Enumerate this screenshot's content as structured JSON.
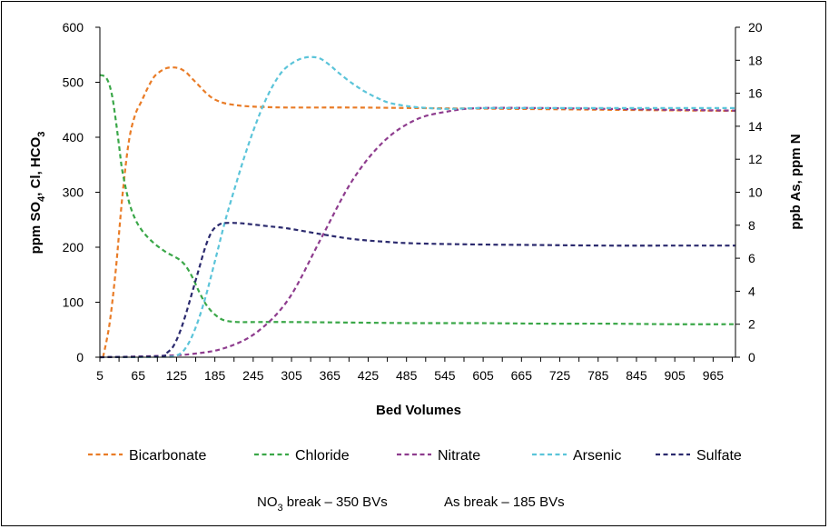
{
  "chart_data": {
    "type": "line",
    "xlabel": "Bed Volumes",
    "ylabel_left": {
      "parts": [
        "ppm SO",
        "4",
        ", Cl, HCO",
        "3"
      ]
    },
    "ylabel_right": "ppb As, ppm N",
    "xlim": [
      5,
      1000
    ],
    "x_ticks": [
      5,
      65,
      125,
      185,
      245,
      305,
      365,
      425,
      485,
      545,
      605,
      665,
      725,
      785,
      845,
      905,
      965
    ],
    "ylim_left": [
      0,
      600
    ],
    "y_ticks_left": [
      0,
      100,
      200,
      300,
      400,
      500,
      600
    ],
    "ylim_right": [
      0,
      20
    ],
    "y_ticks_right": [
      0,
      2,
      4,
      6,
      8,
      10,
      12,
      14,
      16,
      18,
      20
    ],
    "grid": false,
    "legend_position": "bottom",
    "series": [
      {
        "name": "Bicarbonate",
        "axis": "left",
        "color": "#e97c27",
        "x": [
          10,
          20,
          30,
          40,
          50,
          60,
          70,
          80,
          90,
          100,
          110,
          120,
          130,
          140,
          150,
          160,
          170,
          180,
          190,
          200,
          220,
          240,
          260,
          300,
          400,
          500,
          600,
          700,
          800,
          900,
          1000
        ],
        "y": [
          0,
          60,
          160,
          290,
          390,
          440,
          465,
          490,
          510,
          520,
          526,
          527,
          525,
          518,
          506,
          494,
          482,
          472,
          466,
          462,
          458,
          456,
          455,
          454,
          454,
          453,
          452,
          451,
          450,
          449,
          448
        ]
      },
      {
        "name": "Chloride",
        "axis": "left",
        "color": "#3aa748",
        "x": [
          5,
          10,
          15,
          20,
          25,
          30,
          35,
          40,
          50,
          60,
          70,
          80,
          90,
          100,
          110,
          120,
          130,
          140,
          150,
          160,
          170,
          180,
          190,
          200,
          220,
          250,
          300,
          400,
          500,
          600,
          700,
          800,
          900,
          1000
        ],
        "y": [
          513,
          512,
          508,
          495,
          470,
          430,
          385,
          340,
          285,
          252,
          232,
          218,
          207,
          198,
          190,
          184,
          177,
          165,
          145,
          120,
          98,
          83,
          73,
          67,
          64,
          64,
          64,
          63,
          62,
          62,
          61,
          61,
          60,
          60
        ]
      },
      {
        "name": "Nitrate",
        "axis": "right",
        "color": "#8e3c8e",
        "x": [
          5,
          100,
          150,
          200,
          250,
          300,
          350,
          400,
          450,
          500,
          550,
          600,
          700,
          800,
          900,
          1000
        ],
        "y": [
          0,
          0.08,
          0.2,
          0.55,
          1.5,
          3.5,
          7.1,
          10.7,
          13.1,
          14.4,
          14.9,
          15.1,
          15.1,
          15.05,
          15.0,
          14.95
        ]
      },
      {
        "name": "Arsenic",
        "axis": "right",
        "color": "#5bc4d9",
        "x": [
          5,
          100,
          125,
          140,
          155,
          170,
          185,
          200,
          215,
          230,
          245,
          260,
          275,
          290,
          305,
          320,
          335,
          350,
          365,
          380,
          400,
          420,
          440,
          460,
          490,
          520,
          550,
          600,
          700,
          800,
          900,
          1000
        ],
        "y": [
          0,
          0.02,
          0.1,
          0.6,
          1.8,
          3.6,
          5.8,
          8.1,
          10.1,
          12.0,
          13.7,
          15.2,
          16.4,
          17.3,
          17.8,
          18.1,
          18.2,
          18.1,
          17.7,
          17.2,
          16.6,
          16.1,
          15.7,
          15.4,
          15.2,
          15.1,
          15.05,
          15.1,
          15.1,
          15.1,
          15.1,
          15.1
        ]
      },
      {
        "name": "Sulfate",
        "axis": "left",
        "color": "#2b2a6e",
        "x": [
          5,
          100,
          110,
          120,
          130,
          140,
          150,
          160,
          170,
          180,
          190,
          200,
          220,
          240,
          270,
          300,
          350,
          400,
          450,
          500,
          600,
          700,
          800,
          900,
          1000
        ],
        "y": [
          0,
          2,
          8,
          20,
          45,
          80,
          120,
          160,
          200,
          228,
          240,
          244,
          244,
          242,
          238,
          234,
          224,
          215,
          210,
          207,
          205,
          204,
          203,
          203,
          203
        ]
      }
    ],
    "annotations": [
      {
        "parts": [
          "NO",
          "3",
          " break – 350 BVs"
        ]
      },
      {
        "parts": [
          "As break – 185 BVs"
        ]
      }
    ]
  }
}
